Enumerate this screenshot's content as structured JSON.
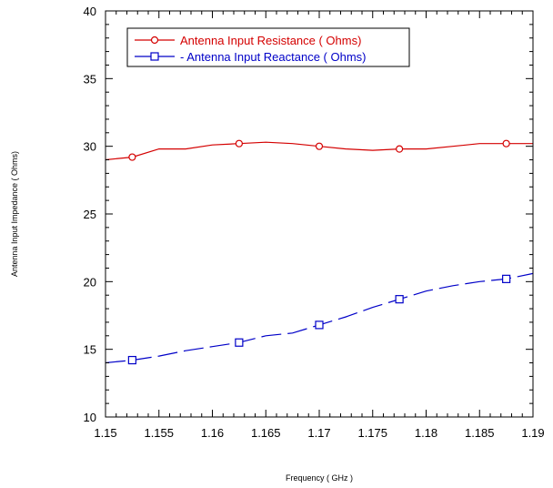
{
  "chart_data": {
    "type": "line",
    "xlabel": "Frequency ( GHz )",
    "ylabel": "Antenna Input Impedance ( Ohms)",
    "xlim": [
      1.15,
      1.19
    ],
    "ylim": [
      10,
      40
    ],
    "x_ticks": [
      "1.15",
      "1.155",
      "1.16",
      "1.165",
      "1.17",
      "1.175",
      "1.18",
      "1.185",
      "1.19"
    ],
    "y_ticks": [
      "10",
      "15",
      "20",
      "25",
      "30",
      "35",
      "40"
    ],
    "grid": false,
    "legend_position": "top-left",
    "series": [
      {
        "name": "Antenna Input Resistance ( Ohms)",
        "color": "#d40000",
        "marker": "circle",
        "line_style": "solid",
        "x": [
          1.15,
          1.1525,
          1.155,
          1.1575,
          1.16,
          1.1625,
          1.165,
          1.1675,
          1.17,
          1.1725,
          1.175,
          1.1775,
          1.18,
          1.1825,
          1.185,
          1.1875,
          1.19
        ],
        "y": [
          29.0,
          29.2,
          29.8,
          29.8,
          30.1,
          30.2,
          30.3,
          30.2,
          30.0,
          29.8,
          29.7,
          29.8,
          29.8,
          30.0,
          30.2,
          30.2,
          30.2
        ],
        "marker_x": [
          1.1525,
          1.1625,
          1.17,
          1.1775,
          1.1875
        ]
      },
      {
        "name": "- Antenna Input Reactance ( Ohms)",
        "color": "#0000c8",
        "marker": "square",
        "line_style": "dashed",
        "x": [
          1.15,
          1.1525,
          1.155,
          1.1575,
          1.16,
          1.1625,
          1.165,
          1.1675,
          1.17,
          1.1725,
          1.175,
          1.1775,
          1.18,
          1.1825,
          1.185,
          1.1875,
          1.19
        ],
        "y": [
          14.0,
          14.2,
          14.5,
          14.9,
          15.2,
          15.5,
          16.0,
          16.2,
          16.8,
          17.4,
          18.1,
          18.7,
          19.3,
          19.7,
          20.0,
          20.2,
          20.6
        ],
        "marker_x": [
          1.1525,
          1.1625,
          1.17,
          1.1775,
          1.1875
        ]
      }
    ]
  }
}
